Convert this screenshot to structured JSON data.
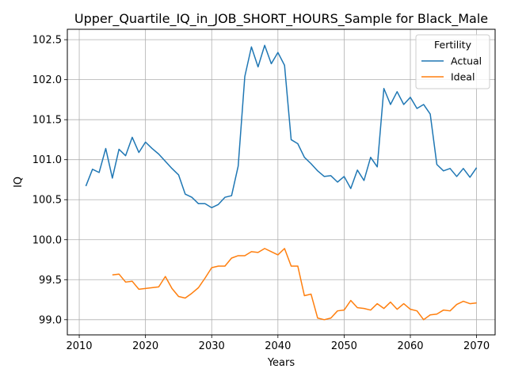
{
  "chart_data": {
    "type": "line",
    "title": "Upper_Quartile_IQ_in_JOB_SHORT_HOURS_Sample for Black_Male",
    "xlabel": "Years",
    "ylabel": "IQ",
    "xlim": [
      2008.2,
      2072.8
    ],
    "ylim": [
      98.81,
      102.63
    ],
    "xticks": [
      2010,
      2020,
      2030,
      2040,
      2050,
      2060,
      2070
    ],
    "yticks": [
      99.0,
      99.5,
      100.0,
      100.5,
      101.0,
      101.5,
      102.0,
      102.5
    ],
    "ytick_labels": [
      "99.0",
      "99.5",
      "100.0",
      "100.5",
      "101.0",
      "101.5",
      "102.0",
      "102.5"
    ],
    "grid": true,
    "legend": {
      "title": "Fertility",
      "position": "top-right"
    },
    "series": [
      {
        "name": "Actual",
        "color": "#1f77b4",
        "x": [
          2011,
          2012,
          2013,
          2014,
          2015,
          2016,
          2017,
          2018,
          2019,
          2020,
          2021,
          2022,
          2023,
          2024,
          2025,
          2026,
          2027,
          2028,
          2029,
          2030,
          2031,
          2032,
          2033,
          2034,
          2035,
          2036,
          2037,
          2038,
          2039,
          2040,
          2041,
          2042,
          2043,
          2044,
          2045,
          2046,
          2047,
          2048,
          2049,
          2050,
          2051,
          2052,
          2053,
          2054,
          2055,
          2056,
          2057,
          2058,
          2059,
          2060,
          2061,
          2062,
          2063,
          2064,
          2065,
          2066,
          2067,
          2068,
          2069,
          2070
        ],
        "values": [
          100.67,
          100.88,
          100.84,
          101.14,
          100.77,
          101.13,
          101.05,
          101.28,
          101.09,
          101.22,
          101.14,
          101.07,
          100.98,
          100.89,
          100.81,
          100.57,
          100.53,
          100.45,
          100.45,
          100.4,
          100.44,
          100.53,
          100.55,
          100.92,
          102.04,
          102.41,
          102.16,
          102.43,
          102.2,
          102.34,
          102.18,
          101.25,
          101.2,
          101.03,
          100.95,
          100.86,
          100.79,
          100.8,
          100.72,
          100.79,
          100.64,
          100.87,
          100.74,
          101.03,
          100.91,
          101.89,
          101.69,
          101.85,
          101.69,
          101.78,
          101.64,
          101.69,
          101.57,
          100.94,
          100.86,
          100.89,
          100.79,
          100.89,
          100.78,
          100.9
        ]
      },
      {
        "name": "Ideal",
        "color": "#ff7f0e",
        "x": [
          2015,
          2016,
          2017,
          2018,
          2019,
          2020,
          2021,
          2022,
          2023,
          2024,
          2025,
          2026,
          2027,
          2028,
          2029,
          2030,
          2031,
          2032,
          2033,
          2034,
          2035,
          2036,
          2037,
          2038,
          2039,
          2040,
          2041,
          2042,
          2043,
          2044,
          2045,
          2046,
          2047,
          2048,
          2049,
          2050,
          2051,
          2052,
          2053,
          2054,
          2055,
          2056,
          2057,
          2058,
          2059,
          2060,
          2061,
          2062,
          2063,
          2064,
          2065,
          2066,
          2067,
          2068,
          2069,
          2070
        ],
        "values": [
          99.56,
          99.57,
          99.47,
          99.48,
          99.38,
          99.39,
          99.4,
          99.41,
          99.54,
          99.39,
          99.29,
          99.27,
          99.33,
          99.4,
          99.52,
          99.65,
          99.67,
          99.67,
          99.77,
          99.8,
          99.8,
          99.85,
          99.84,
          99.89,
          99.85,
          99.81,
          99.89,
          99.67,
          99.67,
          99.3,
          99.32,
          99.02,
          99.0,
          99.02,
          99.11,
          99.12,
          99.24,
          99.15,
          99.14,
          99.12,
          99.2,
          99.14,
          99.22,
          99.13,
          99.2,
          99.13,
          99.11,
          99.0,
          99.06,
          99.07,
          99.12,
          99.11,
          99.19,
          99.23,
          99.2,
          99.21
        ]
      }
    ]
  }
}
